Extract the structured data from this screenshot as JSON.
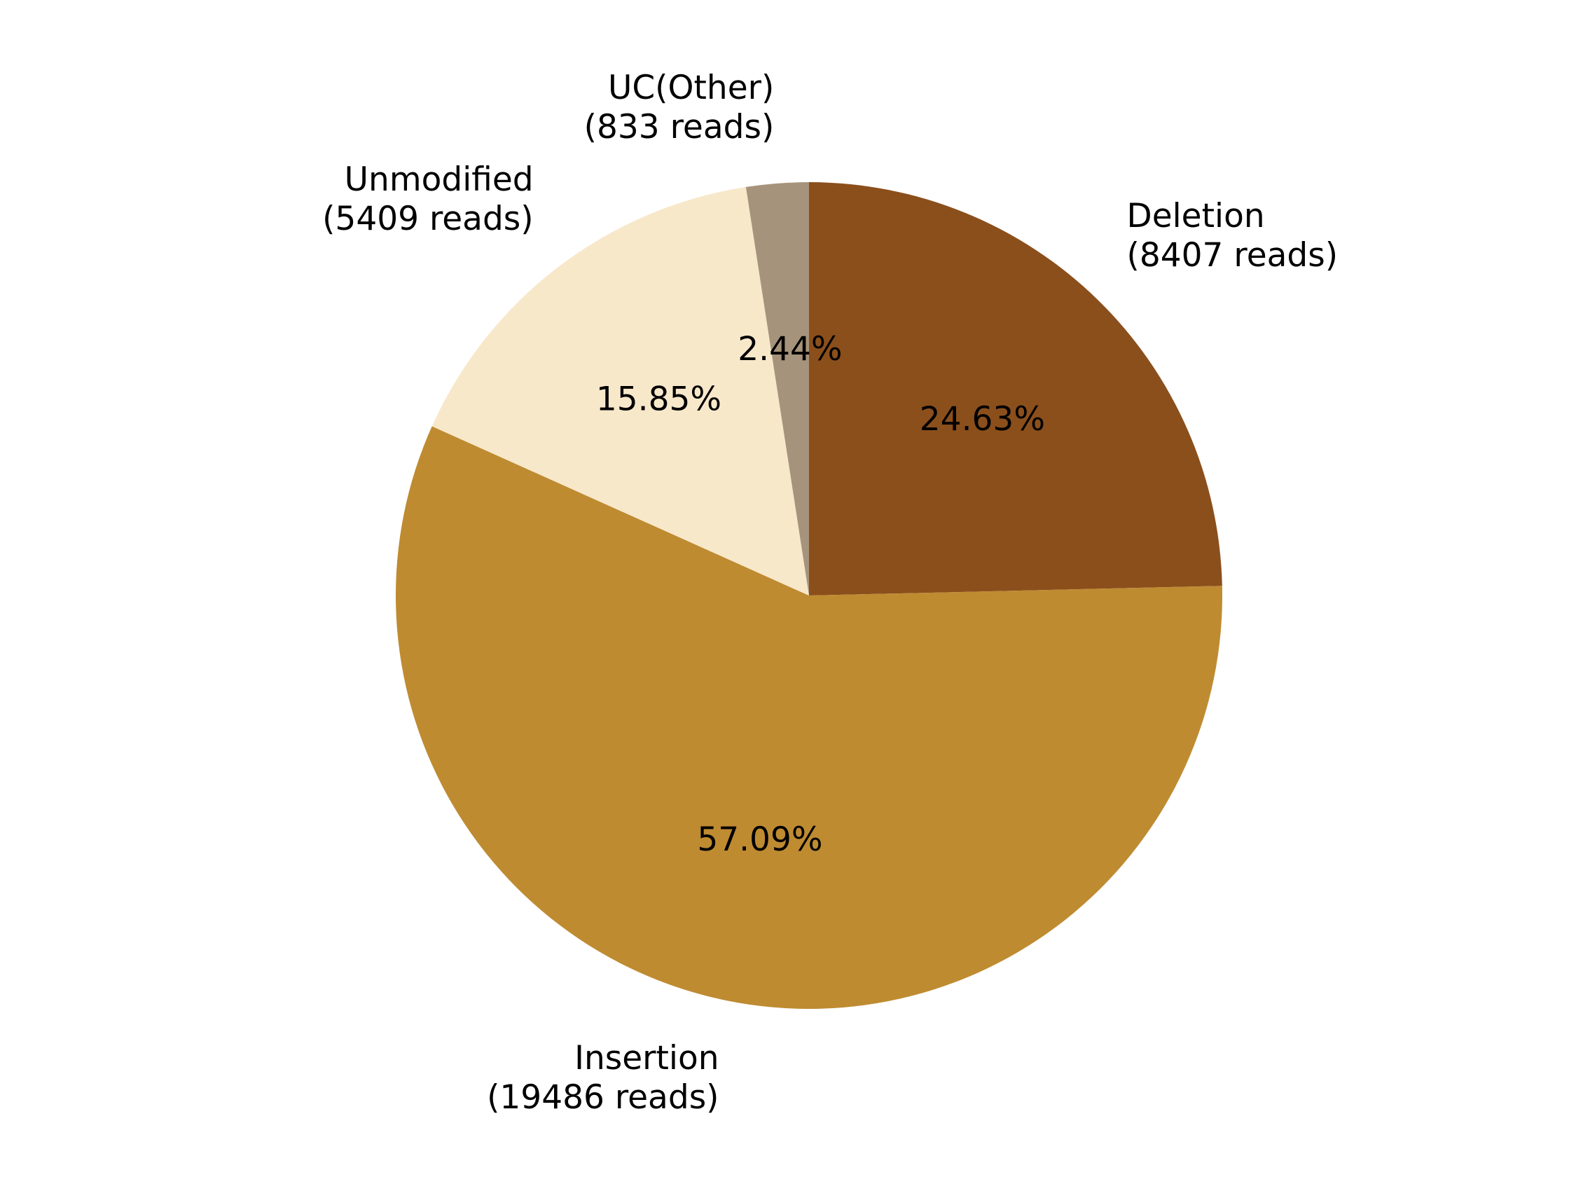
{
  "chart_data": {
    "type": "pie",
    "start_angle_deg": 90,
    "direction": "clockwise",
    "slices": [
      {
        "category": "Deletion",
        "reads_label": "(8407 reads)",
        "value": 8407,
        "percent_label": "24.63%",
        "color": "#8B4F1C"
      },
      {
        "category": "Insertion",
        "reads_label": "(19486 reads)",
        "value": 19486,
        "percent_label": "57.09%",
        "color": "#BF8B31"
      },
      {
        "category": "Unmodified",
        "reads_label": "(5409 reads)",
        "value": 5409,
        "percent_label": "15.85%",
        "color": "#F8E8CA"
      },
      {
        "category": "UC(Other)",
        "reads_label": "(833 reads)",
        "value": 833,
        "percent_label": "2.44%",
        "color": "#A6937B"
      }
    ]
  }
}
